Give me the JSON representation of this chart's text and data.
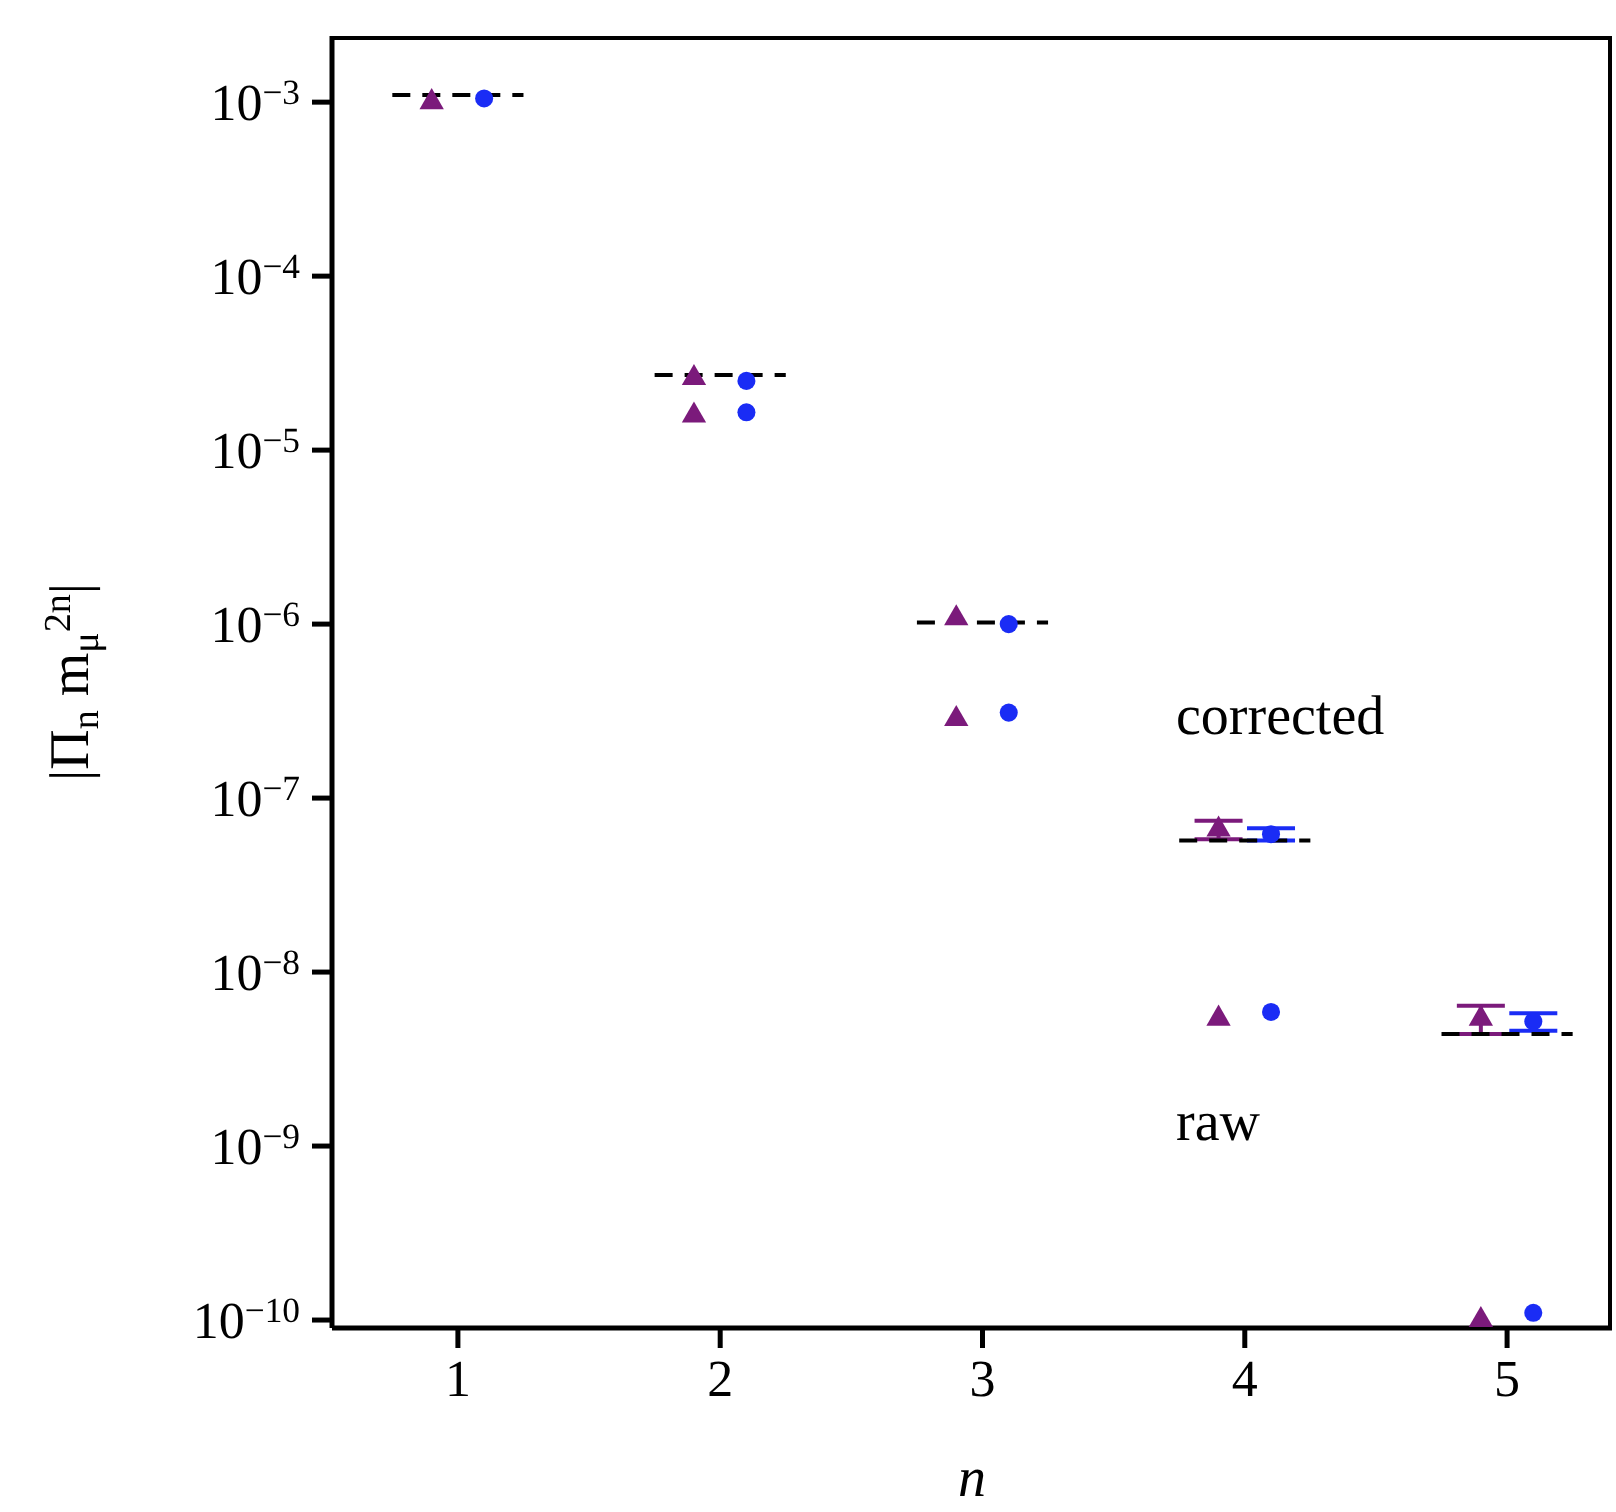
{
  "chart_data": {
    "type": "scatter",
    "xlabel": "n",
    "ylabel": "|Π$_{n}$ m$_{μ}$$^{2n}$|",
    "log": "y",
    "xlim": [
      0.52,
      5.4
    ],
    "xticks": [
      1,
      2,
      3,
      4,
      5
    ],
    "ylim": [
      9e-11,
      0.0024
    ],
    "yticks": [
      {
        "value": 0.001,
        "label": "10$^{−3}$"
      },
      {
        "value": 0.0001,
        "label": "10$^{−4}$"
      },
      {
        "value": 1e-05,
        "label": "10$^{−5}$"
      },
      {
        "value": 1e-06,
        "label": "10$^{−6}$"
      },
      {
        "value": 1e-07,
        "label": "10$^{−7}$"
      },
      {
        "value": 1e-08,
        "label": "10$^{−8}$"
      },
      {
        "value": 1e-09,
        "label": "10$^{−9}$"
      },
      {
        "value": 1e-10,
        "label": "10$^{−10}$"
      }
    ],
    "series": [
      {
        "marker": "triangle",
        "color": "#7b1a7b",
        "x": [
          0.9,
          1.9,
          1.9,
          2.9,
          2.9,
          3.9,
          3.9,
          4.9,
          4.9
        ],
        "values": [
          0.001,
          2.6e-05,
          1.58e-05,
          1.08e-06,
          2.85e-07,
          6.6e-08,
          5.4e-09,
          5.4e-09,
          1e-10
        ],
        "errors": [
          null,
          null,
          null,
          null,
          null,
          8e-09,
          null,
          1e-09,
          null
        ]
      },
      {
        "marker": "circle",
        "color": "#1a2cf5",
        "x": [
          1.1,
          2.1,
          2.1,
          3.1,
          3.1,
          4.1,
          4.1,
          5.1,
          5.1
        ],
        "values": [
          0.00105,
          2.5e-05,
          1.65e-05,
          1e-06,
          3.1e-07,
          6.2e-08,
          5.9e-09,
          5.2e-09,
          1.1e-10
        ],
        "errors": [
          null,
          null,
          null,
          null,
          null,
          5e-09,
          null,
          6e-10,
          null
        ]
      },
      {
        "type": "line",
        "line_style": "dashed",
        "marker": "none",
        "color": "#000000",
        "x": [
          0.75,
          1.25
        ],
        "values": [
          0.0011,
          0.0011
        ]
      },
      {
        "type": "line",
        "line_style": "dashed",
        "marker": "none",
        "color": "#000000",
        "x": [
          1.75,
          2.25
        ],
        "values": [
          2.7e-05,
          2.7e-05
        ]
      },
      {
        "type": "line",
        "line_style": "dashed",
        "marker": "none",
        "color": "#000000",
        "x": [
          2.75,
          3.25
        ],
        "values": [
          1.02e-06,
          1.02e-06
        ]
      },
      {
        "type": "line",
        "line_style": "dashed",
        "marker": "none",
        "color": "#000000",
        "x": [
          3.75,
          4.25
        ],
        "values": [
          5.7e-08,
          5.7e-08
        ]
      },
      {
        "type": "line",
        "line_style": "dashed",
        "marker": "none",
        "color": "#000000",
        "x": [
          4.75,
          5.25
        ],
        "values": [
          4.4e-09,
          4.4e-09
        ]
      }
    ],
    "annotations": [
      "corrected",
      "raw"
    ]
  }
}
